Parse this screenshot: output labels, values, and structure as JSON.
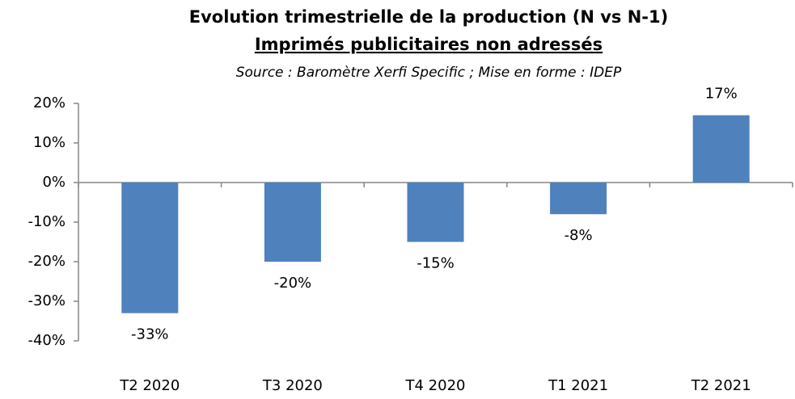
{
  "chart_data": {
    "type": "bar",
    "title": "Evolution trimestrielle de la production (N vs N-1)",
    "subtitle": "Imprimés publicitaires non adressés",
    "source": "Source : Baromètre Xerfi Specific ; Mise en forme : IDEP",
    "categories": [
      "T2 2020",
      "T3 2020",
      "T4 2020",
      "T1 2021",
      "T2 2021"
    ],
    "values": [
      -33,
      -20,
      -15,
      -8,
      17
    ],
    "value_labels": [
      "-33%",
      "-20%",
      "-15%",
      "-8%",
      "17%"
    ],
    "color": "#4f81bd",
    "ylim": [
      -40,
      20
    ],
    "yticks": [
      {
        "value": -40,
        "label": "-40%"
      },
      {
        "value": -30,
        "label": "-30%"
      },
      {
        "value": -20,
        "label": "-20%"
      },
      {
        "value": -10,
        "label": "-10%"
      },
      {
        "value": 0,
        "label": "0%"
      },
      {
        "value": 10,
        "label": "10%"
      },
      {
        "value": 20,
        "label": "20%"
      }
    ],
    "grid": false
  }
}
